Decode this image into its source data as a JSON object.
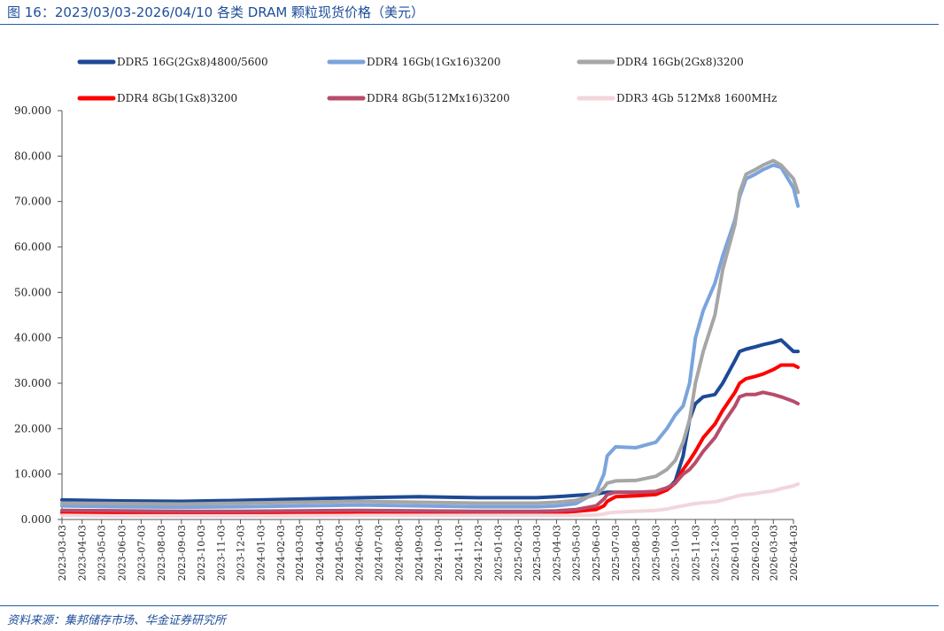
{
  "header": {
    "title": "图 16：2023/03/03-2026/04/10 各类 DRAM 颗粒现货价格（美元）"
  },
  "footer": {
    "source": "资料来源：集邦储存市场、华金证券研究所"
  },
  "chart_data": {
    "type": "line",
    "xlabel": "",
    "ylabel": "",
    "ylim": [
      0,
      90
    ],
    "yticks": [
      "0.000",
      "10.000",
      "20.000",
      "30.000",
      "40.000",
      "50.000",
      "60.000",
      "70.000",
      "80.000",
      "90.000"
    ],
    "xticks": [
      "2023-03-03",
      "2023-04-03",
      "2023-05-03",
      "2023-06-03",
      "2023-07-03",
      "2023-08-03",
      "2023-09-03",
      "2023-10-03",
      "2023-11-03",
      "2023-12-03",
      "2024-01-03",
      "2024-02-03",
      "2024-03-03",
      "2024-04-03",
      "2024-05-03",
      "2024-06-03",
      "2024-07-03",
      "2024-08-03",
      "2024-09-03",
      "2024-10-03",
      "2024-11-03",
      "2024-12-03",
      "2025-01-03",
      "2025-02-03",
      "2025-03-03",
      "2025-04-03",
      "2025-05-03",
      "2025-06-03",
      "2025-07-03",
      "2025-08-03",
      "2025-09-03",
      "2025-10-03",
      "2025-11-03",
      "2025-12-03",
      "2026-01-03",
      "2026-02-03",
      "2026-03-03",
      "2026-04-03"
    ],
    "x": [
      "2023-03-03",
      "2023-06-03",
      "2023-09-03",
      "2023-12-03",
      "2024-03-03",
      "2024-06-03",
      "2024-09-03",
      "2024-12-03",
      "2025-03-03",
      "2025-04-03",
      "2025-05-03",
      "2025-06-03",
      "2025-06-15",
      "2025-06-20",
      "2025-07-03",
      "2025-08-03",
      "2025-09-03",
      "2025-09-20",
      "2025-10-03",
      "2025-10-15",
      "2025-10-25",
      "2025-11-03",
      "2025-11-15",
      "2025-12-03",
      "2025-12-15",
      "2026-01-03",
      "2026-01-10",
      "2026-01-20",
      "2026-02-03",
      "2026-02-15",
      "2026-03-03",
      "2026-03-15",
      "2026-04-03",
      "2026-04-10"
    ],
    "legend_position": "top",
    "series": [
      {
        "name": "DDR5 16G(2Gx8)4800/5600",
        "color": "#1c4a96",
        "values": [
          4.3,
          4.1,
          4.0,
          4.2,
          4.5,
          4.8,
          5.0,
          4.8,
          4.8,
          5.0,
          5.3,
          5.6,
          5.9,
          6.0,
          6.0,
          6.0,
          6.1,
          6.5,
          8.5,
          14.0,
          22.0,
          25.5,
          27.0,
          27.5,
          30.0,
          35.0,
          37.0,
          37.5,
          38.0,
          38.5,
          39.0,
          39.5,
          37.0,
          37.0
        ]
      },
      {
        "name": "DDR4 16Gb(1Gx16)3200",
        "color": "#7ba4dd",
        "values": [
          3.0,
          2.8,
          2.7,
          2.8,
          3.0,
          3.2,
          3.0,
          2.8,
          2.8,
          3.0,
          3.5,
          6.0,
          10.0,
          14.0,
          16.0,
          15.8,
          17.0,
          20.0,
          23.0,
          25.0,
          30.0,
          40.0,
          46.0,
          52.0,
          58.0,
          66.0,
          71.0,
          75.0,
          76.0,
          77.0,
          78.0,
          77.5,
          73.0,
          69.0
        ]
      },
      {
        "name": "DDR4 16Gb(2Gx8)3200",
        "color": "#a6a6a6",
        "values": [
          3.6,
          3.5,
          3.4,
          3.6,
          3.8,
          4.0,
          3.8,
          3.6,
          3.6,
          3.8,
          4.2,
          5.5,
          7.0,
          8.0,
          8.5,
          8.6,
          9.5,
          11.0,
          13.0,
          17.0,
          22.0,
          30.0,
          37.0,
          45.0,
          55.0,
          65.0,
          72.0,
          76.0,
          77.0,
          78.0,
          79.0,
          78.0,
          75.0,
          72.0
        ]
      },
      {
        "name": "DDR4 8Gb(1Gx8)3200",
        "color": "#ff0000",
        "values": [
          1.5,
          1.5,
          1.5,
          1.5,
          1.6,
          1.6,
          1.5,
          1.5,
          1.5,
          1.5,
          1.8,
          2.2,
          3.0,
          4.0,
          5.0,
          5.2,
          5.5,
          6.5,
          8.0,
          11.0,
          13.0,
          15.0,
          18.0,
          21.0,
          24.0,
          28.0,
          30.0,
          31.0,
          31.5,
          32.0,
          33.0,
          34.0,
          34.0,
          33.5
        ]
      },
      {
        "name": "DDR4 8Gb(512Mx16)3200",
        "color": "#b84c6b",
        "values": [
          2.0,
          1.9,
          1.8,
          1.8,
          1.9,
          2.0,
          1.9,
          1.8,
          1.8,
          1.9,
          2.2,
          3.0,
          4.5,
          5.5,
          6.0,
          6.0,
          6.2,
          7.0,
          8.0,
          10.0,
          11.0,
          12.5,
          15.0,
          18.0,
          21.0,
          25.0,
          27.0,
          27.5,
          27.5,
          28.0,
          27.5,
          27.0,
          26.0,
          25.5
        ]
      },
      {
        "name": "DDR3 4Gb 512Mx8 1600MHz",
        "color": "#f2d6dc",
        "values": [
          0.9,
          0.8,
          0.8,
          0.8,
          0.8,
          0.9,
          0.9,
          0.9,
          0.9,
          0.9,
          0.9,
          1.0,
          1.2,
          1.4,
          1.6,
          1.8,
          2.0,
          2.3,
          2.7,
          3.0,
          3.3,
          3.5,
          3.7,
          3.9,
          4.3,
          5.0,
          5.3,
          5.5,
          5.7,
          6.0,
          6.3,
          6.8,
          7.4,
          7.8
        ]
      }
    ]
  }
}
